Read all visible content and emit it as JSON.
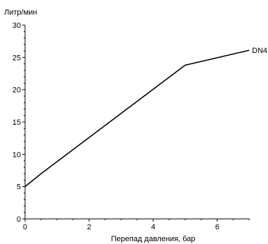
{
  "chart_data": {
    "type": "line",
    "title": "",
    "xlabel": "Перепад давления, бар",
    "ylabel": "Литр/мин",
    "xlim": [
      0,
      7
    ],
    "ylim": [
      0,
      30
    ],
    "x_ticks": [
      "0",
      "2",
      "4",
      "6"
    ],
    "y_ticks": [
      "0",
      "5",
      "10",
      "15",
      "20",
      "25",
      "30"
    ],
    "grid": false,
    "series": [
      {
        "name": "DN4",
        "x": [
          0,
          0.5,
          5,
          7
        ],
        "y": [
          5,
          7,
          23.8,
          26.1
        ]
      }
    ]
  },
  "colors": {
    "line": "#000000",
    "axis": "#000000",
    "background": "#ffffff"
  }
}
